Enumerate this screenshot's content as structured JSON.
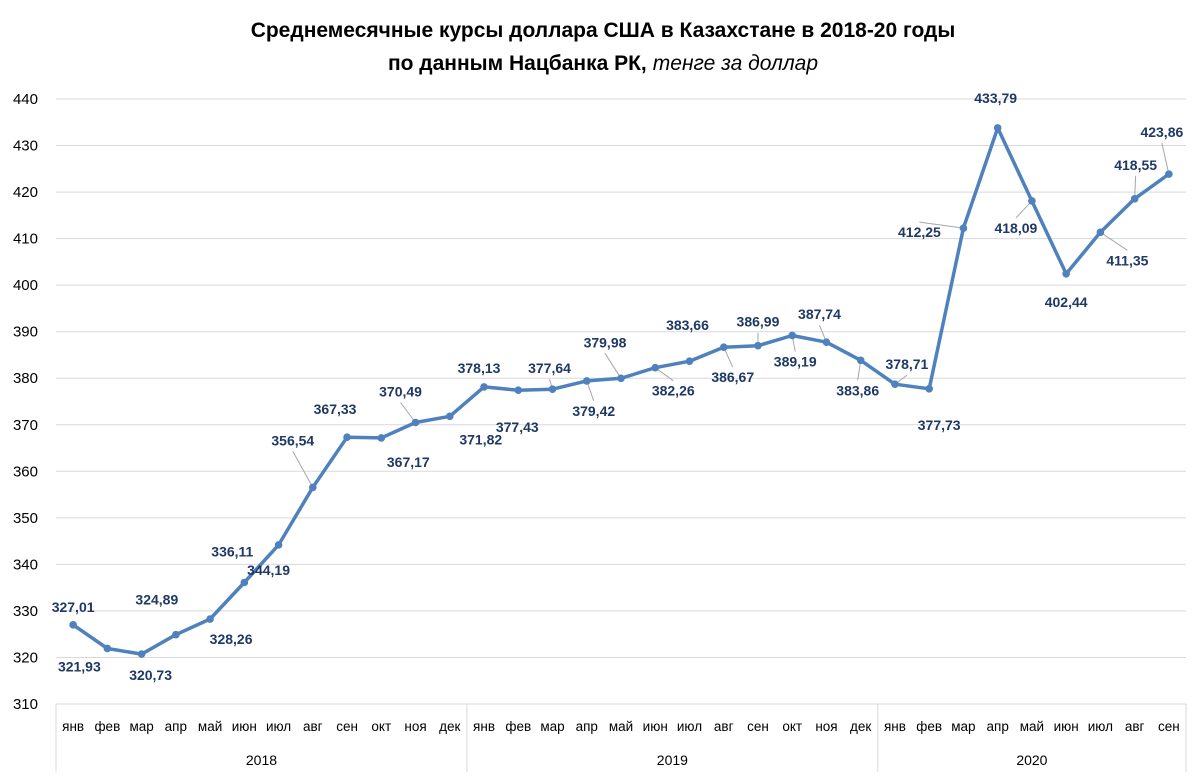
{
  "chart_data": {
    "type": "line",
    "title_main": "Среднемесячные курсы доллара США в Казахстане в 2018-20 годы",
    "title_line2": "по данным Нацбанка РК,",
    "title_italic": "тенге за доллар",
    "ylim": [
      310,
      440
    ],
    "yticks": [
      "310",
      "320",
      "330",
      "340",
      "350",
      "360",
      "370",
      "380",
      "390",
      "400",
      "410",
      "420",
      "430",
      "440"
    ],
    "grid": "horizontal",
    "line_color": "#4f81bd",
    "label_color": "#1f3864",
    "years": [
      {
        "label": "2018",
        "months": [
          "янв",
          "фев",
          "мар",
          "апр",
          "май",
          "июн",
          "июл",
          "авг",
          "сен",
          "окт",
          "ноя",
          "дек"
        ]
      },
      {
        "label": "2019",
        "months": [
          "янв",
          "фев",
          "мар",
          "апр",
          "май",
          "июн",
          "июл",
          "авг",
          "сен",
          "окт",
          "ноя",
          "дек"
        ]
      },
      {
        "label": "2020",
        "months": [
          "янв",
          "фев",
          "мар",
          "апр",
          "май",
          "июн",
          "июл",
          "авг",
          "сен"
        ]
      }
    ],
    "values": [
      327.01,
      321.93,
      320.73,
      324.89,
      328.26,
      336.11,
      344.19,
      356.54,
      367.33,
      367.17,
      370.49,
      371.82,
      378.13,
      377.43,
      377.64,
      379.42,
      379.98,
      382.26,
      383.66,
      386.67,
      386.99,
      389.19,
      387.74,
      383.86,
      378.71,
      377.73,
      412.25,
      433.79,
      418.09,
      402.44,
      411.35,
      418.55,
      423.86
    ],
    "labels": [
      "327,01",
      "321,93",
      "320,73",
      "324,89",
      "328,26",
      "336,11",
      "344,19",
      "356,54",
      "367,33",
      "367,17",
      "370,49",
      "371,82",
      "378,13",
      "377,43",
      "377,64",
      "379,42",
      "379,98",
      "382,26",
      "383,66",
      "386,67",
      "386,99",
      "389,19",
      "387,74",
      "383,86",
      "378,71",
      "377,73",
      "412,25",
      "433,79",
      "418,09",
      "402,44",
      "411,35",
      "418,55",
      "423,86"
    ]
  }
}
